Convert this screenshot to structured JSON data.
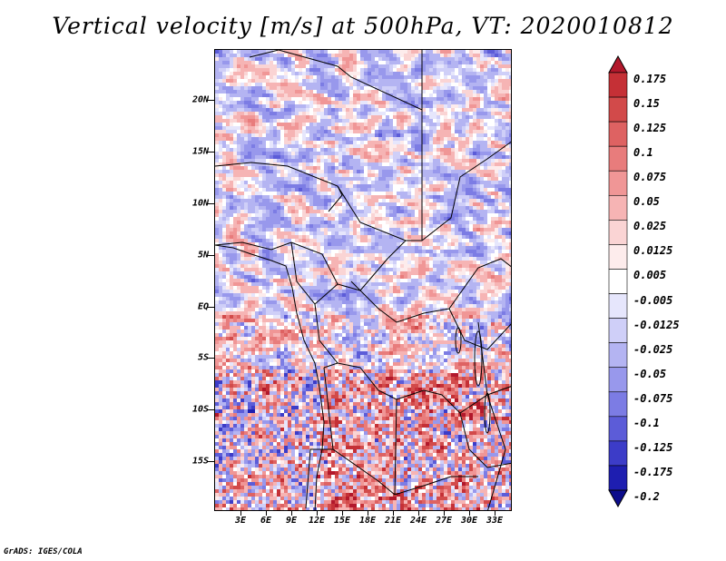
{
  "title": "Vertical velocity [m/s] at 500hPa, VT: 2020010812",
  "credit": "GrADS: IGES/COLA",
  "map": {
    "lat_labels": [
      "20N",
      "15N",
      "10N",
      "5N",
      "EQ",
      "5S",
      "10S",
      "15S"
    ],
    "lon_labels": [
      "3E",
      "6E",
      "9E",
      "12E",
      "15E",
      "18E",
      "21E",
      "24E",
      "27E",
      "30E",
      "33E"
    ]
  },
  "colorbar": {
    "levels": [
      "0.175",
      "0.15",
      "0.125",
      "0.1",
      "0.075",
      "0.05",
      "0.025",
      "0.0125",
      "0.005",
      "-0.005",
      "-0.0125",
      "-0.025",
      "-0.05",
      "-0.075",
      "-0.1",
      "-0.125",
      "-0.175",
      "-0.2"
    ],
    "colors": [
      "#b2182b",
      "#c53036",
      "#d24a4a",
      "#de6262",
      "#e87c7c",
      "#f09696",
      "#f6b4b4",
      "#fad4d4",
      "#fdecec",
      "#ffffff",
      "#e6e6fc",
      "#cfcff8",
      "#b4b4f2",
      "#9898ec",
      "#7c7ce4",
      "#5c5cd8",
      "#3c3cc8",
      "#1e1eb0",
      "#0c0c8c"
    ]
  }
}
